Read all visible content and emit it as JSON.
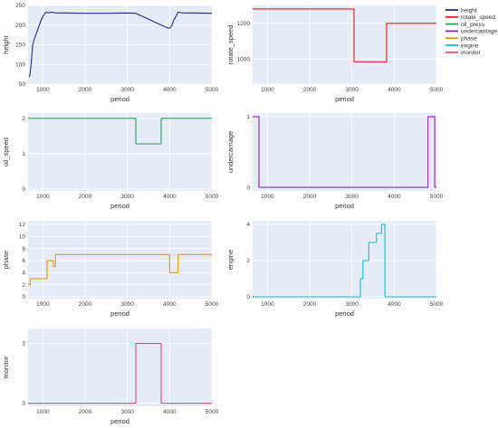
{
  "chart_data": [
    {
      "type": "line",
      "xlabel": "period",
      "ylabel": "height",
      "xlim": [
        650,
        5000
      ],
      "ylim": [
        50,
        250
      ],
      "xticks": [
        1000,
        2000,
        3000,
        4000,
        5000
      ],
      "yticks": [
        50,
        100,
        150,
        200,
        250
      ],
      "grid": true,
      "series": [
        {
          "name": "height",
          "color": "#1f2d8a",
          "x": [
            680,
            700,
            730,
            760,
            800,
            850,
            900,
            950,
            1000,
            1050,
            1080,
            1100,
            1150,
            1200,
            1250,
            1300,
            1500,
            2000,
            2500,
            3000,
            3200,
            3400,
            3600,
            3800,
            3950,
            4000,
            4050,
            4100,
            4150,
            4200,
            4300,
            4500,
            5000
          ],
          "y": [
            68,
            78,
            110,
            150,
            165,
            180,
            195,
            210,
            222,
            230,
            233,
            232,
            231,
            233,
            232,
            231,
            231,
            230,
            230,
            231,
            230,
            220,
            210,
            200,
            193,
            192,
            198,
            213,
            222,
            233,
            231,
            231,
            230
          ]
        }
      ]
    },
    {
      "type": "line",
      "xlabel": "period",
      "ylabel": "rotate_speed",
      "xlim": [
        650,
        5000
      ],
      "ylim": [
        860,
        1300
      ],
      "xticks": [
        1000,
        2000,
        3000,
        4000,
        5000
      ],
      "yticks": [
        1000,
        1200
      ],
      "grid": true,
      "legend_position": "top-right",
      "series": [
        {
          "name": "rotate_speed",
          "color": "#e31a1c",
          "x": [
            650,
            3050,
            3050,
            3820,
            3820,
            5000
          ],
          "y": [
            1280,
            1280,
            985,
            985,
            1200,
            1200
          ]
        }
      ]
    },
    {
      "type": "line",
      "xlabel": "period",
      "ylabel": "oil_speed",
      "xlim": [
        650,
        5000
      ],
      "ylim": [
        -0.05,
        2.15
      ],
      "xticks": [
        1000,
        2000,
        3000,
        4000,
        5000
      ],
      "yticks": [
        0,
        1,
        2
      ],
      "grid": true,
      "series": [
        {
          "name": "oil_press",
          "color": "#2ca25f",
          "x": [
            650,
            3200,
            3200,
            3800,
            3800,
            5000
          ],
          "y": [
            2,
            2,
            1.28,
            1.28,
            2,
            2
          ]
        }
      ]
    },
    {
      "type": "line",
      "xlabel": "period",
      "ylabel": "undercarriage",
      "xlim": [
        650,
        5000
      ],
      "ylim": [
        -0.05,
        1.05
      ],
      "xticks": [
        1000,
        2000,
        3000,
        4000,
        5000
      ],
      "yticks": [
        0,
        1
      ],
      "grid": true,
      "series": [
        {
          "name": "undercarriage",
          "color": "#8e24aa",
          "x": [
            650,
            800,
            800,
            4800,
            4800,
            4960,
            4960,
            5000
          ],
          "y": [
            1,
            1,
            0,
            0,
            1,
            1,
            0,
            0
          ]
        }
      ]
    },
    {
      "type": "line",
      "xlabel": "period",
      "ylabel": "phase",
      "xlim": [
        650,
        5000
      ],
      "ylim": [
        -0.3,
        12.6
      ],
      "xticks": [
        1000,
        2000,
        3000,
        4000,
        5000
      ],
      "yticks": [
        0,
        2,
        4,
        6,
        8,
        10,
        12
      ],
      "grid": true,
      "series": [
        {
          "name": "phase",
          "color": "#e09b00",
          "x": [
            650,
            700,
            700,
            1100,
            1100,
            1250,
            1250,
            1300,
            1300,
            1350,
            1350,
            4000,
            4000,
            4200,
            4200,
            5000
          ],
          "y": [
            2,
            2,
            3,
            3,
            6,
            6,
            5,
            5,
            7,
            7,
            7,
            7,
            4,
            4,
            7,
            7
          ]
        }
      ]
    },
    {
      "type": "line",
      "xlabel": "period",
      "ylabel": "engine",
      "xlim": [
        650,
        5000
      ],
      "ylim": [
        -0.1,
        4.2
      ],
      "xticks": [
        1000,
        2000,
        3000,
        4000,
        5000
      ],
      "yticks": [
        0,
        2,
        4
      ],
      "grid": true,
      "series": [
        {
          "name": "engine",
          "color": "#17becf",
          "x": [
            650,
            3200,
            3200,
            3260,
            3260,
            3400,
            3400,
            3580,
            3580,
            3700,
            3700,
            3780,
            3780,
            5000
          ],
          "y": [
            0,
            0,
            1,
            1,
            2,
            2,
            3,
            3,
            3.5,
            3.5,
            4,
            4,
            0,
            0
          ]
        }
      ]
    },
    {
      "type": "line",
      "xlabel": "period",
      "ylabel": "monitor",
      "xlim": [
        650,
        5000
      ],
      "ylim": [
        -0.05,
        1.25
      ],
      "xticks": [
        1000,
        2000,
        3000,
        4000,
        5000
      ],
      "yticks": [
        0,
        1
      ],
      "grid": true,
      "series": [
        {
          "name": "monitor",
          "color": "#e8467c",
          "x": [
            650,
            3200,
            3200,
            3800,
            3800,
            5000
          ],
          "y": [
            0,
            0,
            1,
            1,
            0,
            0
          ]
        }
      ]
    }
  ],
  "legend": [
    {
      "name": "height",
      "color": "#1f2d8a"
    },
    {
      "name": "rotate_speed",
      "color": "#e31a1c"
    },
    {
      "name": "oil_press",
      "color": "#2ca25f"
    },
    {
      "name": "undercarriage",
      "color": "#8e24aa"
    },
    {
      "name": "phase",
      "color": "#e09b00"
    },
    {
      "name": "engine",
      "color": "#17becf"
    },
    {
      "name": "monitor",
      "color": "#e8467c"
    }
  ]
}
